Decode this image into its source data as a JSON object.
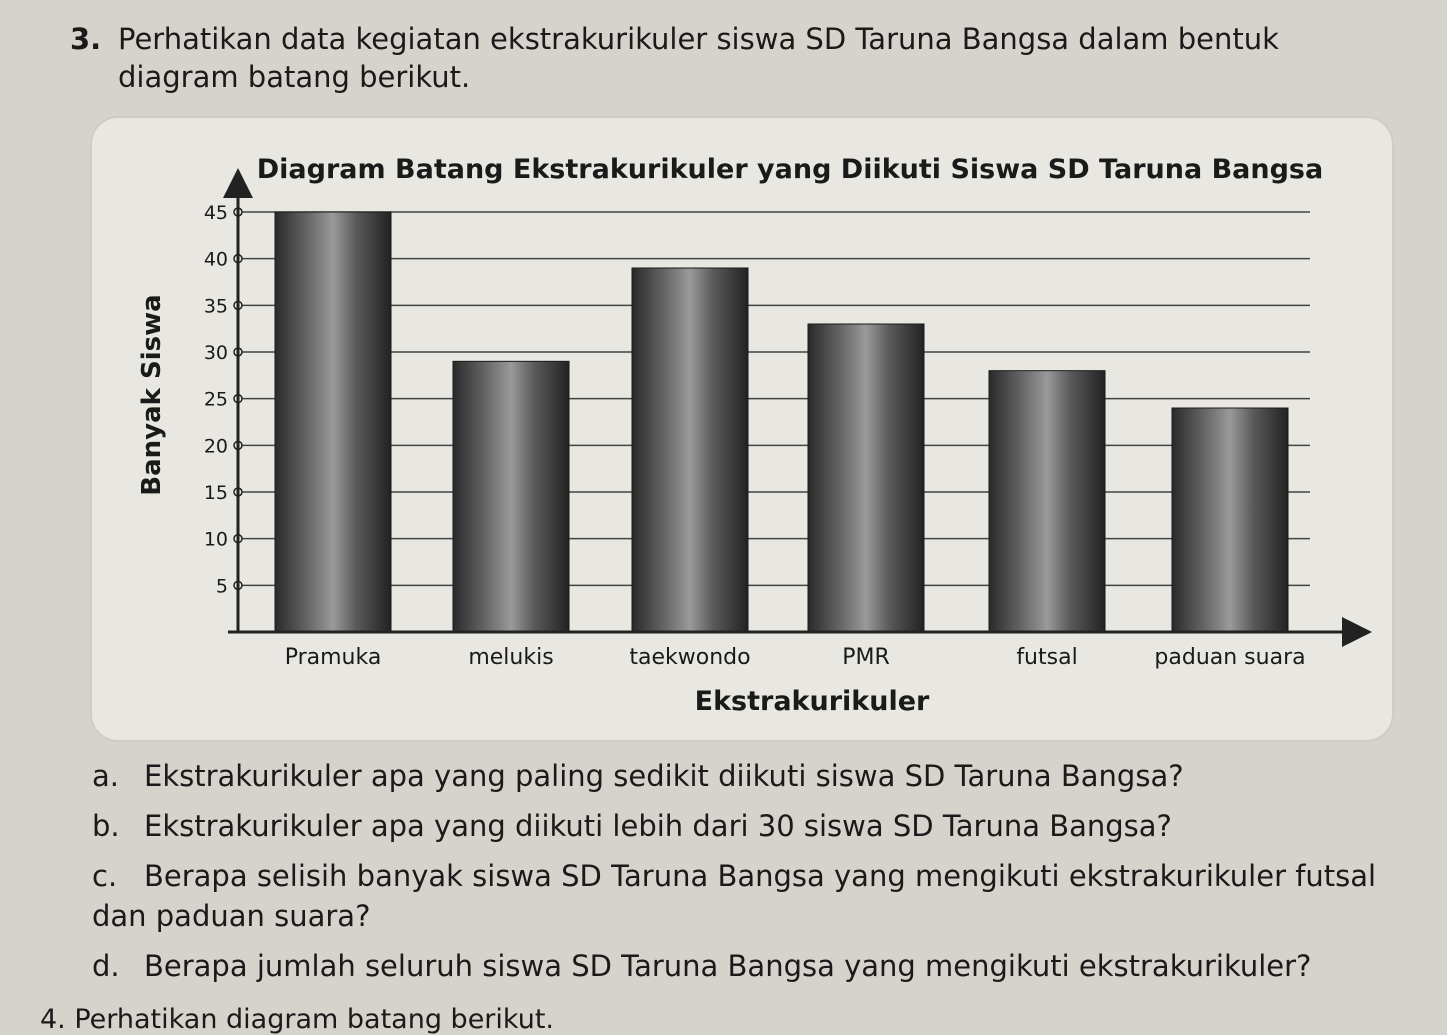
{
  "question": {
    "number": "3.",
    "intro": "Perhatikan data kegiatan ekstrakurikuler siswa SD Taruna Bangsa dalam bentuk diagram batang berikut."
  },
  "chart_data": {
    "type": "bar",
    "title": "Diagram Batang Ekstrakurikuler yang Diikuti Siswa SD Taruna Bangsa",
    "xlabel": "Ekstrakurikuler",
    "ylabel": "Banyak Siswa",
    "categories": [
      "Pramuka",
      "melukis",
      "taekwondo",
      "PMR",
      "futsal",
      "paduan suara"
    ],
    "values": [
      45,
      29,
      39,
      33,
      28,
      24
    ],
    "yticks": [
      5,
      10,
      15,
      20,
      25,
      30,
      35,
      40,
      45
    ],
    "ylim": [
      0,
      48
    ],
    "grid": true,
    "bar_color": "#3a3a3a"
  },
  "subquestions": [
    {
      "letter": "a.",
      "text": "Ekstrakurikuler apa yang paling sedikit diikuti siswa SD Taruna Bangsa?"
    },
    {
      "letter": "b.",
      "text": "Ekstrakurikuler apa yang diikuti lebih dari 30 siswa SD Taruna Bangsa?"
    },
    {
      "letter": "c.",
      "text": "Berapa selisih banyak siswa SD Taruna Bangsa yang mengikuti ekstrakurikuler futsal dan paduan suara?"
    },
    {
      "letter": "d.",
      "text": "Berapa jumlah seluruh siswa SD Taruna Bangsa yang mengikuti ekstrakurikuler?"
    }
  ],
  "next_question": "4. Perhatikan diagram batang berikut."
}
